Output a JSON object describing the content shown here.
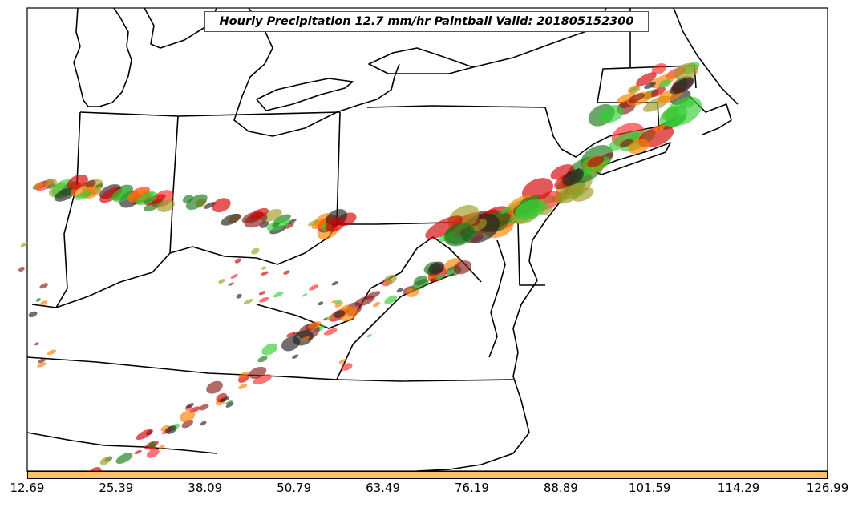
{
  "title": "Hourly Precipitation 12.7 mm/hr Paintball Valid: 201805152300",
  "colorbar": {
    "color": "#ffc063",
    "ticks": [
      "12.69",
      "25.39",
      "38.09",
      "50.79",
      "63.49",
      "76.19",
      "88.89",
      "101.59",
      "114.29",
      "126.99"
    ]
  },
  "member_colors": [
    "#d40000",
    "#ff7f00",
    "#1a7a1a",
    "#33cc33",
    "#8b1a1a",
    "#9e9a20",
    "#222222",
    "#ff2a2a"
  ]
}
